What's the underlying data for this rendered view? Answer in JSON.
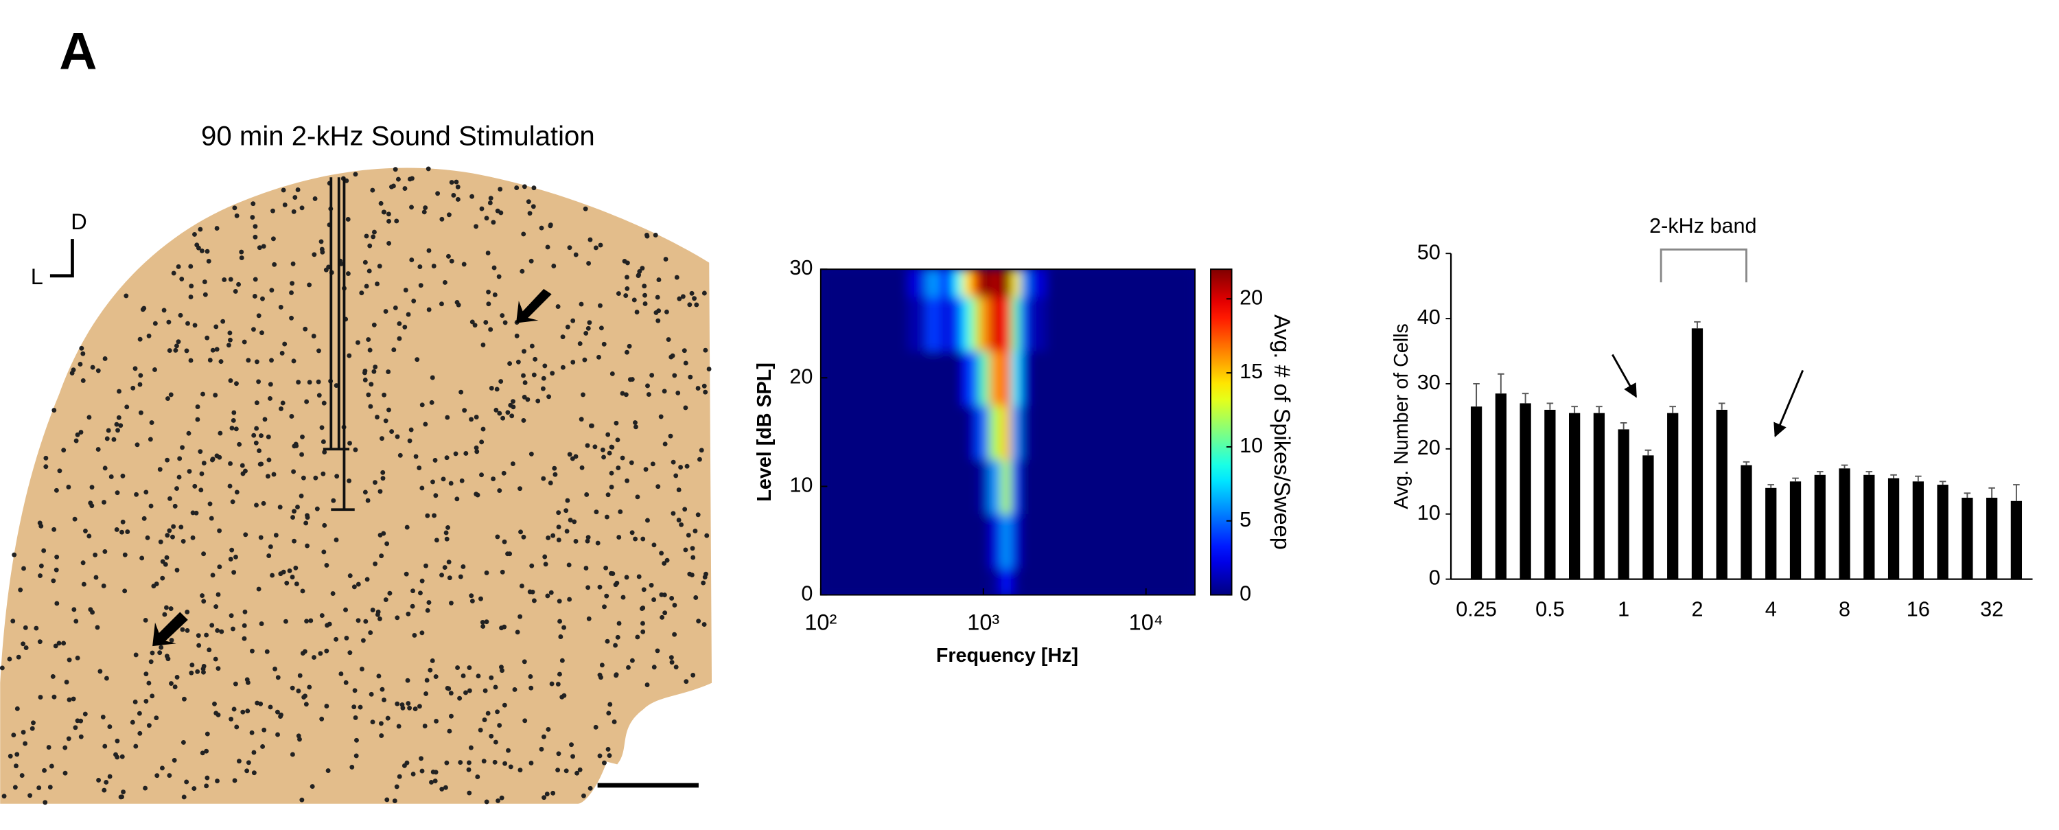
{
  "panel_label": "A",
  "histology": {
    "title": "90 min 2-kHz Sound Stimulation",
    "orientation": {
      "dorsal": "D",
      "lateral": "L"
    }
  },
  "chart_data": [
    {
      "type": "heatmap",
      "xlabel": "Frequency [Hz]",
      "ylabel": "Level [dB SPL]",
      "colorbar_label": "Avg. # of Spikes/Sweep",
      "xscale": "log",
      "colormap": "jet",
      "x": [
        100,
        150,
        200,
        300,
        400,
        500,
        600,
        700,
        800,
        900,
        1000,
        1200,
        1400,
        1600,
        1800,
        2000,
        3000,
        5000,
        10000,
        20000
      ],
      "y": [
        0,
        5,
        10,
        15,
        20,
        25,
        30
      ],
      "z": [
        [
          0,
          0,
          0,
          0,
          0,
          0,
          0,
          0,
          0,
          0,
          0,
          0.5,
          3,
          0.5,
          0,
          0,
          0,
          0,
          0,
          0
        ],
        [
          0,
          0,
          0,
          0,
          0,
          0,
          0,
          0,
          0,
          0,
          0,
          2,
          6,
          2,
          0,
          0,
          0,
          0,
          0,
          0
        ],
        [
          0,
          0,
          0,
          0,
          0,
          0,
          0,
          0,
          0,
          0,
          1,
          6,
          12,
          4,
          0,
          0,
          0,
          0,
          0,
          0
        ],
        [
          0,
          0,
          0,
          0,
          0,
          0,
          0,
          0,
          0,
          2,
          5,
          12,
          15,
          6,
          1,
          0,
          0,
          0,
          0,
          0
        ],
        [
          0,
          0,
          0,
          0,
          0,
          0,
          0,
          0,
          3,
          5,
          10,
          16,
          17,
          8,
          2,
          0,
          0,
          0,
          0,
          0
        ],
        [
          0,
          0,
          0,
          0,
          1,
          4,
          2,
          4,
          8,
          12,
          16,
          20,
          19,
          10,
          4,
          1,
          0,
          0,
          0,
          0
        ],
        [
          0,
          0,
          0,
          0,
          2,
          6,
          3,
          8,
          14,
          18,
          22,
          21,
          22,
          14,
          6,
          2,
          0,
          0,
          0,
          0
        ]
      ],
      "xlim": [
        100,
        20000
      ],
      "xticks": [
        {
          "value": 100,
          "label": "10²"
        },
        {
          "value": 1000,
          "label": "10³"
        },
        {
          "value": 10000,
          "label": "10⁴"
        }
      ],
      "ylim": [
        0,
        30
      ],
      "yticks": [
        0,
        10,
        20,
        30
      ],
      "zlim": [
        0,
        22
      ],
      "zticks": [
        0,
        5,
        10,
        15,
        20
      ]
    },
    {
      "type": "bar",
      "ylabel": "Avg. Number of Cells",
      "categories": [
        "0.25",
        null,
        null,
        "0.5",
        null,
        null,
        "1",
        null,
        null,
        "2",
        null,
        null,
        "4",
        null,
        null,
        "8",
        null,
        null,
        "16",
        null,
        null,
        "32",
        null
      ],
      "values": [
        26.5,
        28.5,
        27,
        26,
        25.5,
        25.5,
        23,
        19,
        25.5,
        38.5,
        26,
        17.5,
        14,
        15,
        16,
        17,
        16,
        15.5,
        15,
        14.5,
        12.5,
        12.5,
        12
      ],
      "errors": [
        3.5,
        3,
        1.5,
        1,
        1,
        1,
        1,
        0.8,
        1,
        1,
        1,
        0.5,
        0.5,
        0.5,
        0.5,
        0.5,
        0.5,
        0.5,
        0.8,
        0.5,
        0.7,
        1.5,
        2.5
      ],
      "color": "#000000",
      "ylim": [
        0,
        50
      ],
      "yticks": [
        0,
        10,
        20,
        30,
        40,
        50
      ],
      "annotations": [
        "2-kHz band"
      ]
    }
  ]
}
